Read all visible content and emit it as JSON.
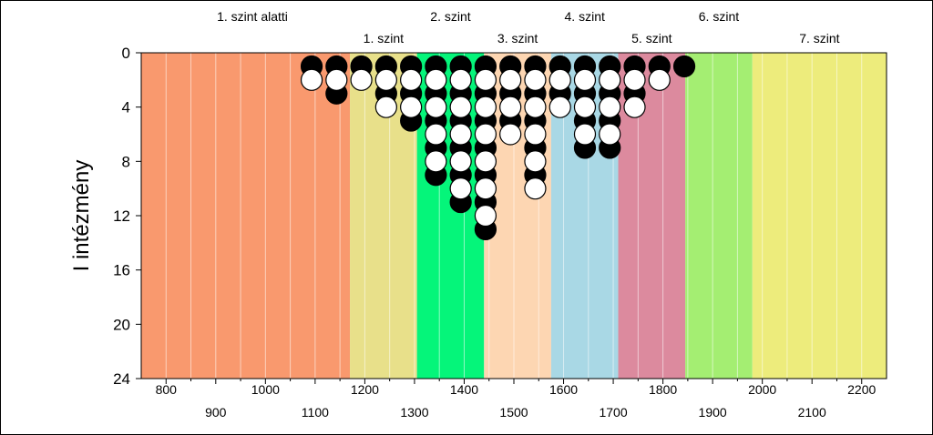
{
  "chart_data": {
    "type": "scatter",
    "ylabel": "I intézmény",
    "xlim": [
      750,
      2250
    ],
    "ylim": [
      0,
      24
    ],
    "y_inverted": true,
    "grid": true,
    "x_ticks_row1": [
      800,
      1000,
      1200,
      1400,
      1600,
      1800,
      2000,
      2200
    ],
    "x_ticks_row2": [
      900,
      1100,
      1300,
      1500,
      1700,
      1900,
      2100
    ],
    "y_ticks": [
      0,
      4,
      8,
      12,
      16,
      20,
      24
    ],
    "bands": [
      {
        "label": "1. szint alatti",
        "from": 750,
        "to": 1170,
        "color": "#F9996E",
        "label_row": 1
      },
      {
        "label": "1. szint",
        "from": 1170,
        "to": 1305,
        "color": "#E8E08A",
        "label_row": 2
      },
      {
        "label": "2. szint",
        "from": 1305,
        "to": 1440,
        "color": "#05F57A",
        "label_row": 1
      },
      {
        "label": "3. szint",
        "from": 1440,
        "to": 1575,
        "color": "#FDD6B2",
        "label_row": 2
      },
      {
        "label": "4. szint",
        "from": 1575,
        "to": 1710,
        "color": "#A9D8E5",
        "label_row": 1
      },
      {
        "label": "5. szint",
        "from": 1710,
        "to": 1845,
        "color": "#DC8A9E",
        "label_row": 2
      },
      {
        "label": "6. szint",
        "from": 1845,
        "to": 1980,
        "color": "#A4EE72",
        "label_row": 1
      },
      {
        "label": "7. szint",
        "from": 1980,
        "to": 2250,
        "color": "#EDEC7C",
        "label_row": 2
      }
    ],
    "series": [
      {
        "fill": "black",
        "x": 1093,
        "y": [
          1
        ]
      },
      {
        "fill": "white",
        "x": 1093,
        "y": [
          2
        ]
      },
      {
        "fill": "black",
        "x": 1143,
        "y": [
          1,
          3
        ]
      },
      {
        "fill": "white",
        "x": 1143,
        "y": [
          2
        ]
      },
      {
        "fill": "black",
        "x": 1193,
        "y": [
          1
        ]
      },
      {
        "fill": "white",
        "x": 1193,
        "y": [
          2
        ]
      },
      {
        "fill": "black",
        "x": 1243,
        "y": [
          1,
          3
        ]
      },
      {
        "fill": "white",
        "x": 1243,
        "y": [
          2,
          4
        ]
      },
      {
        "fill": "black",
        "x": 1293,
        "y": [
          1,
          3,
          5
        ]
      },
      {
        "fill": "white",
        "x": 1293,
        "y": [
          2,
          4
        ]
      },
      {
        "fill": "black",
        "x": 1343,
        "y": [
          1,
          3,
          5,
          7,
          9
        ]
      },
      {
        "fill": "white",
        "x": 1343,
        "y": [
          2,
          4,
          6,
          8
        ]
      },
      {
        "fill": "black",
        "x": 1393,
        "y": [
          1,
          3,
          5,
          7,
          9,
          11
        ]
      },
      {
        "fill": "white",
        "x": 1393,
        "y": [
          2,
          4,
          6,
          8,
          10
        ]
      },
      {
        "fill": "black",
        "x": 1443,
        "y": [
          1,
          3,
          5,
          7,
          9,
          11,
          13
        ]
      },
      {
        "fill": "white",
        "x": 1443,
        "y": [
          2,
          4,
          6,
          8,
          10,
          12
        ]
      },
      {
        "fill": "black",
        "x": 1493,
        "y": [
          1,
          3,
          5
        ]
      },
      {
        "fill": "white",
        "x": 1493,
        "y": [
          2,
          4,
          6
        ]
      },
      {
        "fill": "black",
        "x": 1543,
        "y": [
          1,
          3,
          5,
          7,
          9
        ]
      },
      {
        "fill": "white",
        "x": 1543,
        "y": [
          2,
          4,
          6,
          8,
          10
        ]
      },
      {
        "fill": "black",
        "x": 1593,
        "y": [
          1,
          3
        ]
      },
      {
        "fill": "white",
        "x": 1593,
        "y": [
          2,
          4
        ]
      },
      {
        "fill": "black",
        "x": 1643,
        "y": [
          1,
          3,
          5,
          7
        ]
      },
      {
        "fill": "white",
        "x": 1643,
        "y": [
          2,
          4,
          6
        ]
      },
      {
        "fill": "black",
        "x": 1693,
        "y": [
          1,
          3,
          5,
          7
        ]
      },
      {
        "fill": "white",
        "x": 1693,
        "y": [
          2,
          4,
          6
        ]
      },
      {
        "fill": "black",
        "x": 1743,
        "y": [
          1,
          3
        ]
      },
      {
        "fill": "white",
        "x": 1743,
        "y": [
          2,
          4
        ]
      },
      {
        "fill": "black",
        "x": 1793,
        "y": [
          1
        ]
      },
      {
        "fill": "white",
        "x": 1793,
        "y": [
          2
        ]
      },
      {
        "fill": "black",
        "x": 1843,
        "y": [
          1
        ]
      }
    ]
  }
}
